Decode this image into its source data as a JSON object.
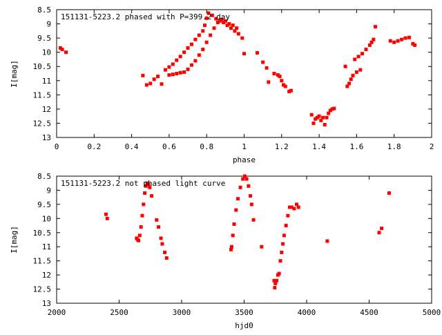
{
  "chart_data": [
    {
      "type": "scatter",
      "title": "151131-5223.2 phased with P=399.2 day",
      "xlabel": "phase",
      "ylabel": "I[mag]",
      "xlim": [
        0,
        2
      ],
      "ylim": [
        13,
        8.5
      ],
      "y_inverted": true,
      "grid": false,
      "color": "#ff0000",
      "x_ticks": [
        "0",
        "0.2",
        "0.4",
        "0.6",
        "0.8",
        "1",
        "1.2",
        "1.4",
        "1.6",
        "1.8",
        "2"
      ],
      "y_ticks": [
        "8.5",
        "9",
        "9.5",
        "10",
        "10.5",
        "11",
        "11.5",
        "12",
        "12.5",
        "13"
      ],
      "series": [
        {
          "points": [
            [
              0.02,
              9.85
            ],
            [
              0.03,
              9.9
            ],
            [
              0.05,
              10.0
            ],
            [
              0.46,
              10.82
            ],
            [
              0.48,
              11.15
            ],
            [
              0.5,
              11.1
            ],
            [
              0.52,
              10.95
            ],
            [
              0.54,
              10.85
            ],
            [
              0.56,
              11.12
            ],
            [
              0.58,
              10.62
            ],
            [
              0.6,
              10.52
            ],
            [
              0.62,
              10.42
            ],
            [
              0.64,
              10.28
            ],
            [
              0.66,
              10.15
            ],
            [
              0.68,
              10.0
            ],
            [
              0.7,
              9.85
            ],
            [
              0.72,
              9.72
            ],
            [
              0.74,
              9.55
            ],
            [
              0.76,
              9.4
            ],
            [
              0.78,
              9.25
            ],
            [
              0.79,
              9.05
            ],
            [
              0.8,
              8.8
            ],
            [
              0.81,
              8.62
            ],
            [
              0.83,
              8.7
            ],
            [
              0.85,
              8.82
            ],
            [
              0.87,
              8.9
            ],
            [
              0.89,
              8.95
            ],
            [
              0.91,
              9.05
            ],
            [
              0.93,
              9.15
            ],
            [
              0.95,
              9.25
            ],
            [
              0.97,
              9.35
            ],
            [
              0.99,
              9.5
            ],
            [
              0.6,
              10.8
            ],
            [
              0.62,
              10.78
            ],
            [
              0.64,
              10.75
            ],
            [
              0.66,
              10.72
            ],
            [
              0.68,
              10.7
            ],
            [
              0.7,
              10.6
            ],
            [
              0.72,
              10.45
            ],
            [
              0.74,
              10.3
            ],
            [
              0.76,
              10.1
            ],
            [
              0.78,
              9.9
            ],
            [
              0.8,
              9.65
            ],
            [
              0.82,
              9.4
            ],
            [
              0.84,
              9.15
            ],
            [
              0.86,
              8.95
            ],
            [
              0.88,
              8.85
            ],
            [
              0.9,
              8.9
            ],
            [
              0.92,
              9.0
            ],
            [
              0.94,
              9.05
            ],
            [
              0.96,
              9.15
            ],
            [
              1.0,
              10.05
            ],
            [
              1.07,
              10.02
            ],
            [
              1.1,
              10.35
            ],
            [
              1.12,
              10.55
            ],
            [
              1.13,
              11.05
            ],
            [
              1.16,
              10.75
            ],
            [
              1.18,
              10.8
            ],
            [
              1.19,
              10.85
            ],
            [
              1.2,
              11.0
            ],
            [
              1.21,
              11.15
            ],
            [
              1.22,
              11.2
            ],
            [
              1.24,
              11.38
            ],
            [
              1.25,
              11.35
            ],
            [
              1.36,
              12.2
            ],
            [
              1.37,
              12.5
            ],
            [
              1.38,
              12.35
            ],
            [
              1.39,
              12.3
            ],
            [
              1.4,
              12.25
            ],
            [
              1.41,
              12.4
            ],
            [
              1.42,
              12.3
            ],
            [
              1.43,
              12.55
            ],
            [
              1.44,
              12.3
            ],
            [
              1.45,
              12.15
            ],
            [
              1.46,
              12.05
            ],
            [
              1.47,
              12.0
            ],
            [
              1.48,
              11.98
            ],
            [
              1.54,
              10.5
            ],
            [
              1.55,
              11.2
            ],
            [
              1.56,
              11.1
            ],
            [
              1.57,
              10.95
            ],
            [
              1.58,
              10.82
            ],
            [
              1.6,
              10.7
            ],
            [
              1.62,
              10.62
            ],
            [
              1.59,
              10.25
            ],
            [
              1.61,
              10.15
            ],
            [
              1.63,
              10.05
            ],
            [
              1.65,
              9.9
            ],
            [
              1.67,
              9.75
            ],
            [
              1.68,
              9.65
            ],
            [
              1.69,
              9.55
            ],
            [
              1.7,
              9.1
            ],
            [
              1.78,
              9.6
            ],
            [
              1.8,
              9.65
            ],
            [
              1.82,
              9.6
            ],
            [
              1.84,
              9.55
            ],
            [
              1.86,
              9.5
            ],
            [
              1.88,
              9.48
            ],
            [
              1.9,
              9.7
            ],
            [
              1.91,
              9.75
            ]
          ]
        }
      ]
    },
    {
      "type": "scatter",
      "title": "151131-5223.2 not phased light curve",
      "xlabel": "hjd0",
      "ylabel": "I[mag]",
      "xlim": [
        2000,
        5000
      ],
      "ylim": [
        13,
        8.5
      ],
      "y_inverted": true,
      "grid": false,
      "color": "#ff0000",
      "x_ticks": [
        "2000",
        "2500",
        "3000",
        "3500",
        "4000",
        "4500",
        "5000"
      ],
      "y_ticks": [
        "8.5",
        "9",
        "9.5",
        "10",
        "10.5",
        "11",
        "11.5",
        "12",
        "12.5",
        "13"
      ],
      "series": [
        {
          "points": [
            [
              2395,
              9.85
            ],
            [
              2405,
              10.0
            ],
            [
              2640,
              10.7
            ],
            [
              2648,
              10.75
            ],
            [
              2655,
              10.78
            ],
            [
              2665,
              10.6
            ],
            [
              2675,
              10.3
            ],
            [
              2685,
              9.9
            ],
            [
              2695,
              9.5
            ],
            [
              2705,
              9.1
            ],
            [
              2715,
              8.85
            ],
            [
              2725,
              8.75
            ],
            [
              2735,
              8.8
            ],
            [
              2745,
              8.9
            ],
            [
              2760,
              9.2
            ],
            [
              2800,
              10.05
            ],
            [
              2815,
              10.3
            ],
            [
              2835,
              10.7
            ],
            [
              2845,
              10.9
            ],
            [
              2865,
              11.2
            ],
            [
              2880,
              11.4
            ],
            [
              3395,
              11.1
            ],
            [
              3400,
              11.0
            ],
            [
              3410,
              10.6
            ],
            [
              3420,
              10.2
            ],
            [
              3435,
              9.7
            ],
            [
              3450,
              9.3
            ],
            [
              3470,
              8.9
            ],
            [
              3490,
              8.6
            ],
            [
              3505,
              8.5
            ],
            [
              3520,
              8.6
            ],
            [
              3535,
              8.85
            ],
            [
              3550,
              9.2
            ],
            [
              3560,
              9.5
            ],
            [
              3575,
              10.05
            ],
            [
              3640,
              11.0
            ],
            [
              3740,
              12.2
            ],
            [
              3745,
              12.45
            ],
            [
              3750,
              12.3
            ],
            [
              3760,
              12.2
            ],
            [
              3770,
              12.0
            ],
            [
              3780,
              11.95
            ],
            [
              3790,
              11.5
            ],
            [
              3800,
              11.2
            ],
            [
              3810,
              10.9
            ],
            [
              3820,
              10.6
            ],
            [
              3835,
              10.25
            ],
            [
              3850,
              9.9
            ],
            [
              3865,
              9.6
            ],
            [
              3880,
              9.6
            ],
            [
              3900,
              9.65
            ],
            [
              3920,
              9.5
            ],
            [
              3935,
              9.6
            ],
            [
              4165,
              10.8
            ],
            [
              4580,
              10.5
            ],
            [
              4600,
              10.35
            ],
            [
              4660,
              9.1
            ]
          ]
        }
      ]
    }
  ]
}
